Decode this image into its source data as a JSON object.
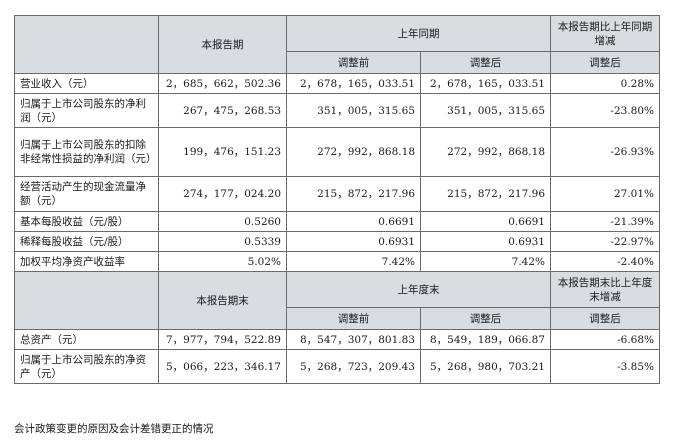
{
  "header1": {
    "period": "本报告期",
    "prior": "上年同期",
    "change": "本报告期比上年同期增减",
    "before": "调整前",
    "after": "调整后",
    "change_after": "调整后"
  },
  "rows1": [
    {
      "label": "营业收入（元）",
      "cur": "2，685，662，502.36",
      "before": "2，678，165，033.51",
      "after": "2，678，165，033.51",
      "chg": "0.28%"
    },
    {
      "label": "归属于上市公司股东的净利润（元）",
      "cur": "267，475，268.53",
      "before": "351，005，315.65",
      "after": "351，005，315.65",
      "chg": "-23.80%"
    },
    {
      "label": "归属于上市公司股东的扣除非经常性损益的净利润（元）",
      "cur": "199，476，151.23",
      "before": "272，992，868.18",
      "after": "272，992，868.18",
      "chg": "-26.93%"
    },
    {
      "label": "经营活动产生的现金流量净额（元）",
      "cur": "274，177，024.20",
      "before": "215，872，217.96",
      "after": "215，872，217.96",
      "chg": "27.01%"
    },
    {
      "label": "基本每股收益（元/股）",
      "cur": "0.5260",
      "before": "0.6691",
      "after": "0.6691",
      "chg": "-21.39%"
    },
    {
      "label": "稀释每股收益（元/股）",
      "cur": "0.5339",
      "before": "0.6931",
      "after": "0.6931",
      "chg": "-22.97%"
    },
    {
      "label": "加权平均净资产收益率",
      "cur": "5.02%",
      "before": "7.42%",
      "after": "7.42%",
      "chg": "-2.40%"
    }
  ],
  "header2": {
    "period": "本报告期末",
    "prior": "上年度末",
    "change": "本报告期末比上年度末增减",
    "before": "调整前",
    "after": "调整后",
    "change_after": "调整后"
  },
  "rows2": [
    {
      "label": "总资产（元）",
      "cur": "7，977，794，522.89",
      "before": "8，547，307，801.83",
      "after": "8，549，189，066.87",
      "chg": "-6.68%"
    },
    {
      "label": "归属于上市公司股东的净资产（元）",
      "cur": "5，066，223，346.17",
      "before": "5，268，723，209.43",
      "after": "5，268，980，703.21",
      "chg": "-3.85%"
    }
  ],
  "note": "会计政策变更的原因及会计差错更正的情况"
}
